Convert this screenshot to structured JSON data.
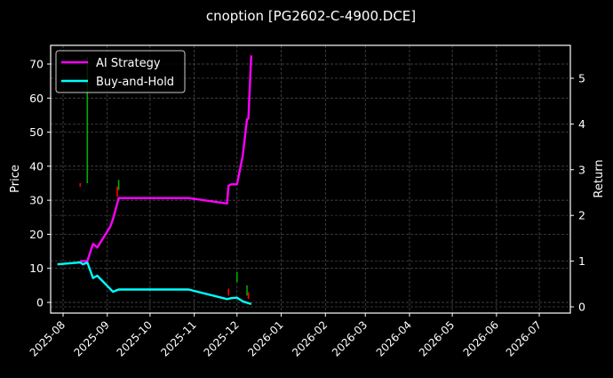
{
  "title": "cnoption [PG2602-C-4900.DCE]",
  "chart_data": {
    "type": "line",
    "title": "cnoption [PG2602-C-4900.DCE]",
    "xlabel": "",
    "ylabel": "Price",
    "ylabel_right": "Return",
    "ylim": [
      -3,
      75
    ],
    "ylim_right": [
      -0.03,
      5.65
    ],
    "grid": true,
    "legend_position": "upper left",
    "x_ticks": [
      "2025-08",
      "2025-09",
      "2025-10",
      "2025-11",
      "2025-12",
      "2026-01",
      "2026-02",
      "2026-03",
      "2026-04",
      "2026-05",
      "2026-06",
      "2026-07"
    ],
    "y_ticks": [
      0,
      10,
      20,
      30,
      40,
      50,
      60,
      70
    ],
    "y_ticks_right": [
      0,
      1,
      2,
      3,
      4,
      5
    ],
    "legend": [
      {
        "name": "AI Strategy",
        "color": "#ff00ff"
      },
      {
        "name": "Buy-and-Hold",
        "color": "#00ffff"
      }
    ],
    "series": [
      {
        "name": "AI Strategy",
        "axis": "right",
        "color": "#ff00ff",
        "points": [
          [
            "2025-08-13",
            1.0
          ],
          [
            "2025-08-15",
            1.0
          ],
          [
            "2025-08-18",
            1.0
          ],
          [
            "2025-08-22",
            1.38
          ],
          [
            "2025-08-25",
            1.3
          ],
          [
            "2025-09-03",
            1.75
          ],
          [
            "2025-09-05",
            1.92
          ],
          [
            "2025-09-09",
            2.38
          ],
          [
            "2025-10-28",
            2.38
          ],
          [
            "2025-11-24",
            2.26
          ],
          [
            "2025-11-25",
            2.65
          ],
          [
            "2025-11-27",
            2.68
          ],
          [
            "2025-12-01",
            2.68
          ],
          [
            "2025-12-05",
            3.3
          ],
          [
            "2025-12-08",
            4.1
          ],
          [
            "2025-12-09",
            4.12
          ],
          [
            "2025-12-11",
            5.5
          ]
        ]
      },
      {
        "name": "Buy-and-Hold",
        "axis": "right",
        "color": "#00ffff",
        "points": [
          [
            "2025-07-28",
            0.93
          ],
          [
            "2025-08-13",
            0.97
          ],
          [
            "2025-08-15",
            0.93
          ],
          [
            "2025-08-18",
            0.97
          ],
          [
            "2025-08-22",
            0.63
          ],
          [
            "2025-08-25",
            0.68
          ],
          [
            "2025-09-05",
            0.33
          ],
          [
            "2025-09-09",
            0.38
          ],
          [
            "2025-10-28",
            0.38
          ],
          [
            "2025-11-24",
            0.17
          ],
          [
            "2025-11-27",
            0.19
          ],
          [
            "2025-12-01",
            0.2
          ],
          [
            "2025-12-05",
            0.12
          ],
          [
            "2025-12-08",
            0.09
          ],
          [
            "2025-12-11",
            0.06
          ]
        ]
      }
    ],
    "price_bars": [
      {
        "date": "2025-08-13",
        "low": 34,
        "high": 35,
        "color": "#ff0000"
      },
      {
        "date": "2025-08-18",
        "low": 35,
        "high": 72,
        "color": "#00aa00"
      },
      {
        "date": "2025-09-08",
        "low": 31,
        "high": 34,
        "color": "#ff0000"
      },
      {
        "date": "2025-09-09",
        "low": 33,
        "high": 36,
        "color": "#00aa00"
      },
      {
        "date": "2025-11-25",
        "low": 2,
        "high": 4,
        "color": "#ff0000"
      },
      {
        "date": "2025-12-01",
        "low": 6,
        "high": 9,
        "color": "#00aa00"
      },
      {
        "date": "2025-12-08",
        "low": 2,
        "high": 5,
        "color": "#00aa00"
      },
      {
        "date": "2025-12-09",
        "low": 1,
        "high": 3,
        "color": "#ff0000"
      }
    ]
  }
}
